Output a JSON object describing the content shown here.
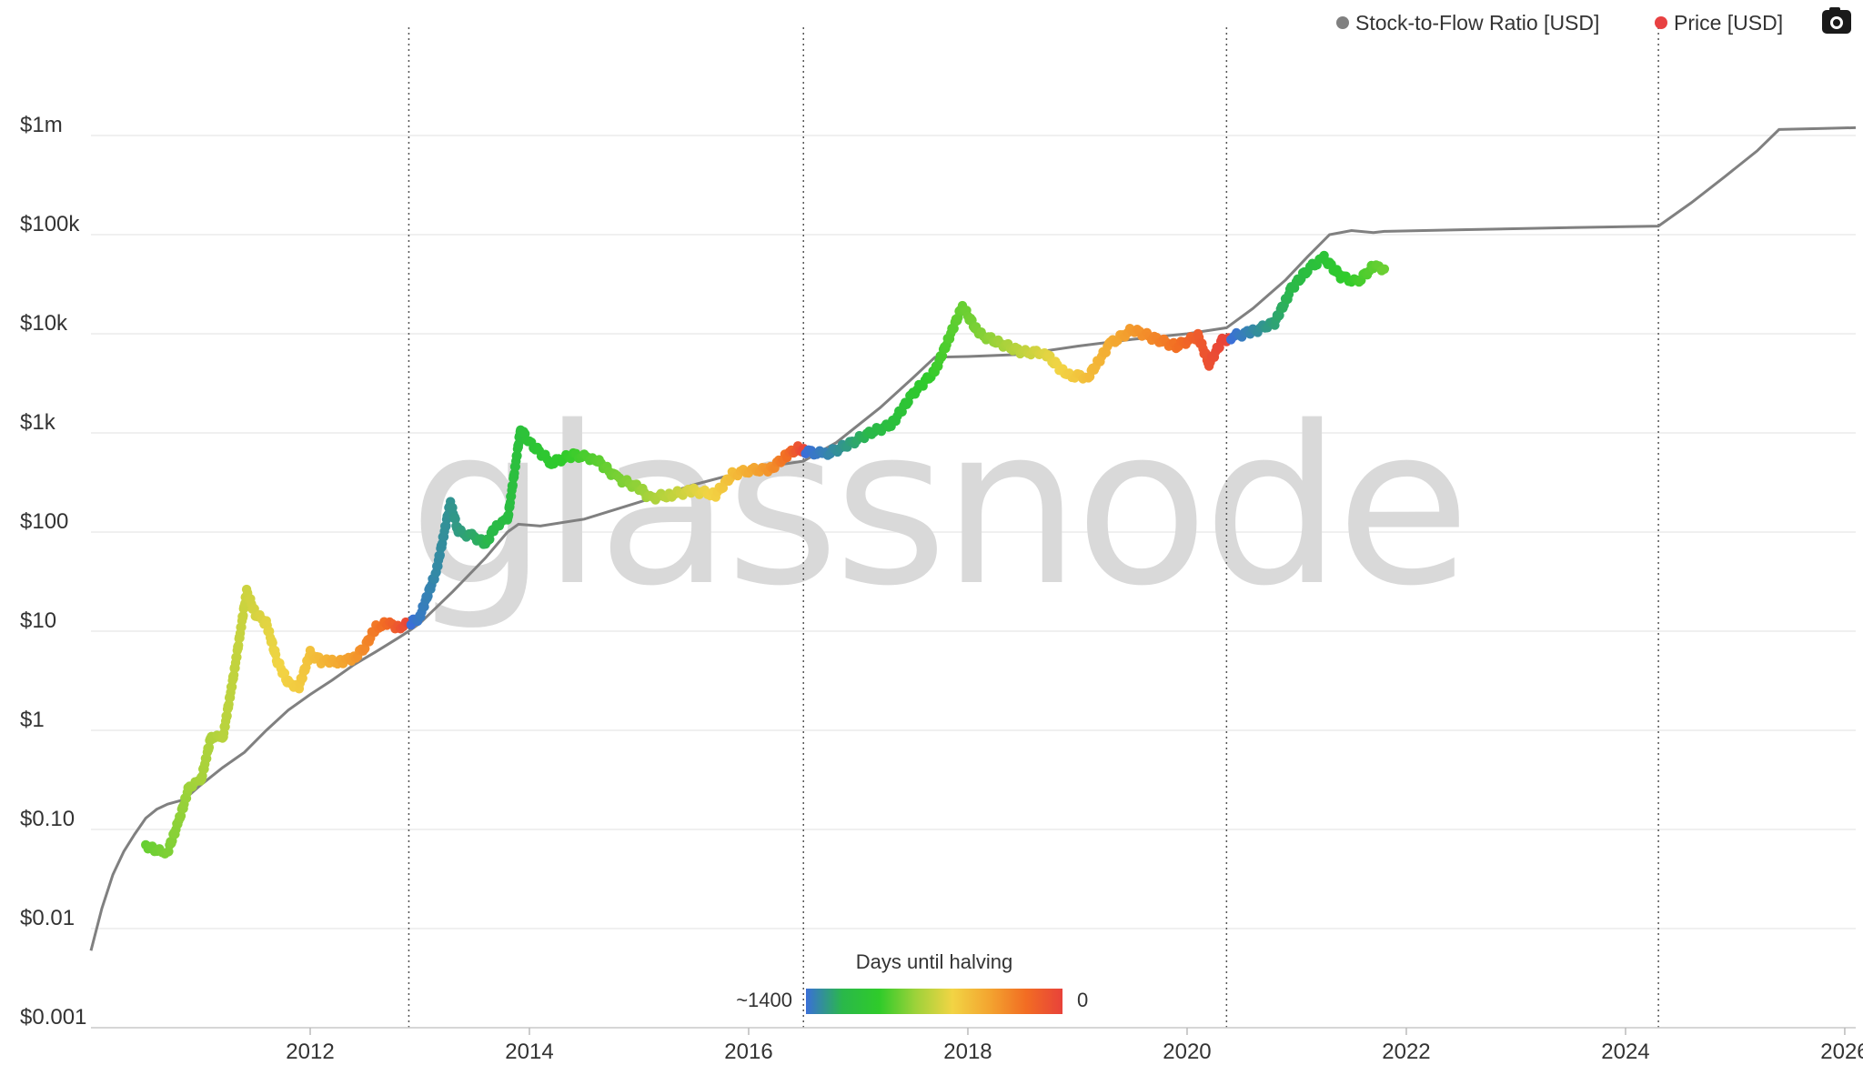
{
  "chart_data": {
    "type": "line",
    "watermark": "glassnode",
    "y_scale": "log",
    "ylim": [
      0.001,
      10000000
    ],
    "xlim": [
      2010.0,
      2026.1
    ],
    "y_ticks": [
      {
        "value": 0.001,
        "label": "$0.001"
      },
      {
        "value": 0.01,
        "label": "$0.01"
      },
      {
        "value": 0.1,
        "label": "$0.10"
      },
      {
        "value": 1,
        "label": "$1"
      },
      {
        "value": 10,
        "label": "$10"
      },
      {
        "value": 100,
        "label": "$100"
      },
      {
        "value": 1000,
        "label": "$1k"
      },
      {
        "value": 10000,
        "label": "$10k"
      },
      {
        "value": 100000,
        "label": "$100k"
      },
      {
        "value": 1000000,
        "label": "$1m"
      }
    ],
    "x_ticks": [
      {
        "value": 2012,
        "label": "2012"
      },
      {
        "value": 2014,
        "label": "2014"
      },
      {
        "value": 2016,
        "label": "2016"
      },
      {
        "value": 2018,
        "label": "2018"
      },
      {
        "value": 2020,
        "label": "2020"
      },
      {
        "value": 2022,
        "label": "2022"
      },
      {
        "value": 2024,
        "label": "2024"
      },
      {
        "value": 2026,
        "label": "2026"
      }
    ],
    "halving_lines": [
      2012.9,
      2016.5,
      2020.36,
      2024.3
    ],
    "legend": {
      "position": "top-right",
      "entries": [
        {
          "name": "Stock-to-Flow Ratio [USD]",
          "color": "#808080"
        },
        {
          "name": "Price [USD]",
          "color": "#e84142"
        }
      ]
    },
    "colorbar": {
      "title": "Days until halving",
      "min_label": "~1400",
      "max_label": "0",
      "stops": [
        "#3a6fd8",
        "#2ab84a",
        "#2fcb2a",
        "#9ed23a",
        "#f2d444",
        "#f3a530",
        "#f26d23",
        "#e8423a"
      ]
    },
    "series": [
      {
        "name": "Stock-to-Flow Ratio [USD]",
        "color": "#808080",
        "points": [
          [
            2010.0,
            0.006
          ],
          [
            2010.1,
            0.016
          ],
          [
            2010.2,
            0.035
          ],
          [
            2010.3,
            0.06
          ],
          [
            2010.4,
            0.09
          ],
          [
            2010.5,
            0.13
          ],
          [
            2010.6,
            0.16
          ],
          [
            2010.7,
            0.18
          ],
          [
            2010.85,
            0.2
          ],
          [
            2011.0,
            0.28
          ],
          [
            2011.2,
            0.42
          ],
          [
            2011.4,
            0.6
          ],
          [
            2011.6,
            1.0
          ],
          [
            2011.8,
            1.6
          ],
          [
            2012.0,
            2.3
          ],
          [
            2012.2,
            3.2
          ],
          [
            2012.4,
            4.6
          ],
          [
            2012.6,
            6.2
          ],
          [
            2012.8,
            8.5
          ],
          [
            2012.9,
            10
          ],
          [
            2013.0,
            12
          ],
          [
            2013.3,
            25
          ],
          [
            2013.6,
            55
          ],
          [
            2013.8,
            100
          ],
          [
            2013.9,
            120
          ],
          [
            2014.1,
            115
          ],
          [
            2014.5,
            135
          ],
          [
            2015.0,
            200
          ],
          [
            2015.5,
            300
          ],
          [
            2016.0,
            420
          ],
          [
            2016.3,
            480
          ],
          [
            2016.5,
            520
          ],
          [
            2016.8,
            800
          ],
          [
            2017.2,
            1800
          ],
          [
            2017.5,
            3600
          ],
          [
            2017.7,
            5800
          ],
          [
            2018.0,
            5900
          ],
          [
            2018.5,
            6200
          ],
          [
            2019.0,
            7500
          ],
          [
            2019.5,
            8800
          ],
          [
            2020.0,
            10000
          ],
          [
            2020.36,
            11500
          ],
          [
            2020.6,
            18000
          ],
          [
            2020.9,
            35000
          ],
          [
            2021.1,
            60000
          ],
          [
            2021.3,
            100000
          ],
          [
            2021.5,
            110000
          ],
          [
            2021.7,
            105000
          ],
          [
            2021.8,
            108000
          ],
          [
            2022.5,
            112000
          ],
          [
            2023.5,
            118000
          ],
          [
            2024.3,
            122000
          ],
          [
            2024.6,
            210000
          ],
          [
            2024.9,
            380000
          ],
          [
            2025.2,
            700000
          ],
          [
            2025.4,
            1150000
          ],
          [
            2025.8,
            1180000
          ],
          [
            2026.1,
            1200000
          ]
        ]
      },
      {
        "name": "Price [USD]",
        "color": "#e84142",
        "color_scale": "days-until-halving",
        "points": [
          [
            2010.5,
            0.07,
            900
          ],
          [
            2010.6,
            0.06,
            880
          ],
          [
            2010.7,
            0.06,
            860
          ],
          [
            2010.8,
            0.12,
            830
          ],
          [
            2010.9,
            0.28,
            800
          ],
          [
            2011.0,
            0.3,
            780
          ],
          [
            2011.1,
            0.9,
            760
          ],
          [
            2011.2,
            0.8,
            740
          ],
          [
            2011.3,
            3.5,
            720
          ],
          [
            2011.42,
            25,
            690
          ],
          [
            2011.5,
            15,
            670
          ],
          [
            2011.6,
            12,
            640
          ],
          [
            2011.7,
            5,
            610
          ],
          [
            2011.8,
            3,
            580
          ],
          [
            2011.9,
            2.8,
            560
          ],
          [
            2012.0,
            6,
            520
          ],
          [
            2012.1,
            5,
            480
          ],
          [
            2012.2,
            4.9,
            440
          ],
          [
            2012.3,
            5,
            400
          ],
          [
            2012.4,
            5.3,
            360
          ],
          [
            2012.5,
            7,
            300
          ],
          [
            2012.6,
            11,
            240
          ],
          [
            2012.7,
            12,
            180
          ],
          [
            2012.8,
            11,
            100
          ],
          [
            2012.92,
            12,
            1400
          ],
          [
            2013.0,
            14,
            1370
          ],
          [
            2013.15,
            40,
            1330
          ],
          [
            2013.28,
            200,
            1300
          ],
          [
            2013.35,
            100,
            1280
          ],
          [
            2013.5,
            90,
            1240
          ],
          [
            2013.6,
            75,
            1210
          ],
          [
            2013.7,
            120,
            1180
          ],
          [
            2013.8,
            130,
            1150
          ],
          [
            2013.92,
            1100,
            1110
          ],
          [
            2014.0,
            800,
            1080
          ],
          [
            2014.2,
            500,
            1030
          ],
          [
            2014.4,
            600,
            980
          ],
          [
            2014.6,
            550,
            930
          ],
          [
            2014.8,
            350,
            870
          ],
          [
            2015.0,
            280,
            820
          ],
          [
            2015.1,
            220,
            780
          ],
          [
            2015.3,
            240,
            720
          ],
          [
            2015.5,
            260,
            650
          ],
          [
            2015.7,
            240,
            580
          ],
          [
            2015.85,
            380,
            500
          ],
          [
            2016.0,
            420,
            430
          ],
          [
            2016.2,
            430,
            330
          ],
          [
            2016.35,
            600,
            200
          ],
          [
            2016.45,
            700,
            80
          ],
          [
            2016.52,
            650,
            1400
          ],
          [
            2016.7,
            610,
            1350
          ],
          [
            2016.9,
            750,
            1280
          ],
          [
            2017.1,
            1000,
            1200
          ],
          [
            2017.3,
            1200,
            1130
          ],
          [
            2017.5,
            2500,
            1050
          ],
          [
            2017.7,
            4200,
            980
          ],
          [
            2017.95,
            19000,
            900
          ],
          [
            2018.1,
            10000,
            860
          ],
          [
            2018.3,
            8000,
            790
          ],
          [
            2018.5,
            6500,
            720
          ],
          [
            2018.7,
            6500,
            650
          ],
          [
            2018.9,
            3800,
            580
          ],
          [
            2019.1,
            3700,
            500
          ],
          [
            2019.3,
            8000,
            430
          ],
          [
            2019.5,
            11000,
            360
          ],
          [
            2019.7,
            9000,
            290
          ],
          [
            2019.9,
            7500,
            210
          ],
          [
            2020.1,
            9500,
            120
          ],
          [
            2020.2,
            5000,
            70
          ],
          [
            2020.32,
            8500,
            20
          ],
          [
            2020.4,
            9300,
            1400
          ],
          [
            2020.6,
            10500,
            1330
          ],
          [
            2020.8,
            13000,
            1260
          ],
          [
            2020.95,
            28000,
            1200
          ],
          [
            2021.1,
            45000,
            1140
          ],
          [
            2021.25,
            58000,
            1080
          ],
          [
            2021.4,
            38000,
            1020
          ],
          [
            2021.55,
            33000,
            970
          ],
          [
            2021.7,
            48000,
            920
          ],
          [
            2021.8,
            45000,
            890
          ]
        ]
      }
    ]
  }
}
